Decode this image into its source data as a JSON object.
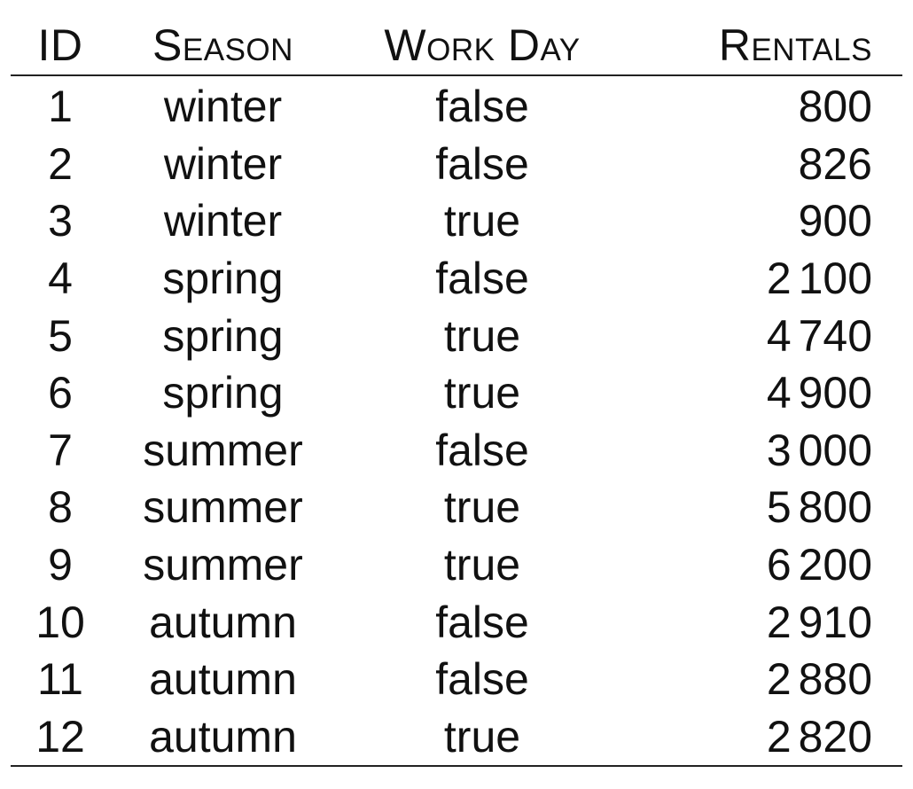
{
  "table": {
    "headers": {
      "id": "ID",
      "season": "Season",
      "work_day": "Work Day",
      "rentals": "Rentals"
    },
    "rows": [
      {
        "id": "1",
        "season": "winter",
        "work_day": "false",
        "rentals": "800"
      },
      {
        "id": "2",
        "season": "winter",
        "work_day": "false",
        "rentals": "826"
      },
      {
        "id": "3",
        "season": "winter",
        "work_day": "true",
        "rentals": "900"
      },
      {
        "id": "4",
        "season": "spring",
        "work_day": "false",
        "rentals": "2 100"
      },
      {
        "id": "5",
        "season": "spring",
        "work_day": "true",
        "rentals": "4 740"
      },
      {
        "id": "6",
        "season": "spring",
        "work_day": "true",
        "rentals": "4 900"
      },
      {
        "id": "7",
        "season": "summer",
        "work_day": "false",
        "rentals": "3 000"
      },
      {
        "id": "8",
        "season": "summer",
        "work_day": "true",
        "rentals": "5 800"
      },
      {
        "id": "9",
        "season": "summer",
        "work_day": "true",
        "rentals": "6 200"
      },
      {
        "id": "10",
        "season": "autumn",
        "work_day": "false",
        "rentals": "2 910"
      },
      {
        "id": "11",
        "season": "autumn",
        "work_day": "false",
        "rentals": "2 880"
      },
      {
        "id": "12",
        "season": "autumn",
        "work_day": "true",
        "rentals": "2 820"
      }
    ]
  }
}
